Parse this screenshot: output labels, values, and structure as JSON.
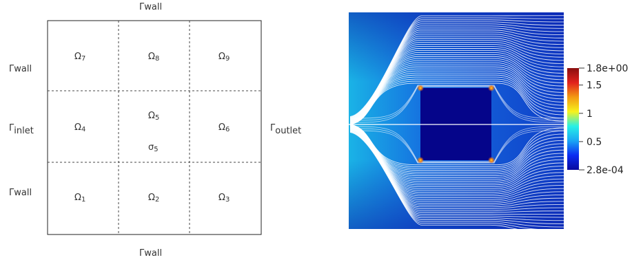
{
  "domain_diagram": {
    "boundaries": {
      "top": {
        "symbol": "Γ",
        "sub": "wall"
      },
      "bottom": {
        "symbol": "Γ",
        "sub": "wall"
      },
      "left_top": {
        "symbol": "Γ",
        "sub": "wall"
      },
      "left_middle": {
        "symbol": "Γ",
        "sub": "inlet"
      },
      "left_bottom": {
        "symbol": "Γ",
        "sub": "wall"
      },
      "right_middle": {
        "symbol": "Γ",
        "sub": "outlet"
      }
    },
    "subdomains": [
      {
        "symbol": "Ω",
        "sub": "7"
      },
      {
        "symbol": "Ω",
        "sub": "8"
      },
      {
        "symbol": "Ω",
        "sub": "9"
      },
      {
        "symbol": "Ω",
        "sub": "4"
      },
      {
        "symbol": "Ω",
        "sub": "5"
      },
      {
        "symbol": "Ω",
        "sub": "6"
      },
      {
        "symbol": "Ω",
        "sub": "1"
      },
      {
        "symbol": "Ω",
        "sub": "2"
      },
      {
        "symbol": "Ω",
        "sub": "3"
      }
    ],
    "inner_interface": {
      "symbol": "σ",
      "sub": "5"
    }
  },
  "colorbar": {
    "max_label": "1.8e+00",
    "min_label": "2.8e-04",
    "ticks": [
      "1.5",
      "1",
      "0.5"
    ],
    "range": [
      0.00028,
      1.8
    ],
    "tick_values": [
      1.5,
      1.0,
      0.5
    ],
    "colormap": [
      "#0a0a9e",
      "#0b2cf2",
      "#1aa6f4",
      "#27f0e6",
      "#f6f21d",
      "#f39a12",
      "#e2221c",
      "#8a0f0f"
    ]
  }
}
